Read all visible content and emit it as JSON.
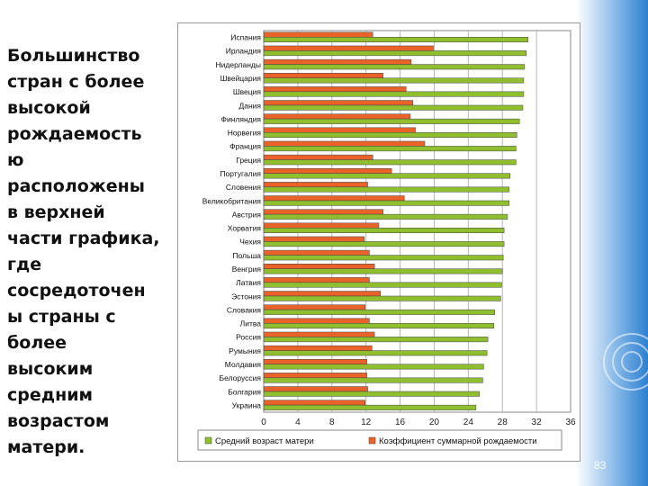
{
  "caption": "Большинство\nстран с более\nвысокой\nрождаемость\nю\nрасположены\nв верхней\nчасти графика,\nгде\nсосредоточен\nы страны с\nболее\nвысоким\nсредним\nвозрастом\nматери.",
  "page_number": "83",
  "chart_data": {
    "type": "bar",
    "orientation": "horizontal",
    "categories": [
      "Испания",
      "Ирландия",
      "Нидерланды",
      "Швейцария",
      "Швеция",
      "Дания",
      "Финляндия",
      "Норвегия",
      "Франция",
      "Греция",
      "Португалия",
      "Словения",
      "Великобритания",
      "Австрия",
      "Хорватия",
      "Чехия",
      "Польша",
      "Венгрия",
      "Латвия",
      "Эстония",
      "Словакия",
      "Литва",
      "Россия",
      "Румыния",
      "Молдавия",
      "Белоруссия",
      "Болгария",
      "Украина"
    ],
    "series": [
      {
        "name": "Средний возраст матери",
        "color": "#8fbf2f",
        "values": [
          31.0,
          30.8,
          30.6,
          30.5,
          30.5,
          30.4,
          30.0,
          29.7,
          29.6,
          29.6,
          28.9,
          28.8,
          28.8,
          28.6,
          28.2,
          28.2,
          28.1,
          28.0,
          27.9,
          27.8,
          27.1,
          27.0,
          26.3,
          26.2,
          25.8,
          25.7,
          25.3,
          24.9
        ]
      },
      {
        "name": "Коэффициент суммарной рождаемости",
        "color": "#e8622a",
        "values": [
          12.8,
          19.9,
          17.3,
          14.0,
          16.7,
          17.5,
          17.2,
          17.8,
          18.9,
          12.8,
          15.0,
          12.2,
          16.5,
          14.0,
          13.5,
          11.8,
          12.4,
          13.0,
          12.4,
          13.7,
          11.9,
          12.4,
          13.0,
          12.7,
          12.1,
          12.1,
          12.2,
          11.9
        ]
      }
    ],
    "x_ticks": [
      "0",
      "4",
      "8",
      "12",
      "16",
      "20",
      "24",
      "28",
      "32",
      "36"
    ],
    "xlim": [
      0,
      36
    ],
    "grid": true,
    "legend_position": "bottom"
  }
}
